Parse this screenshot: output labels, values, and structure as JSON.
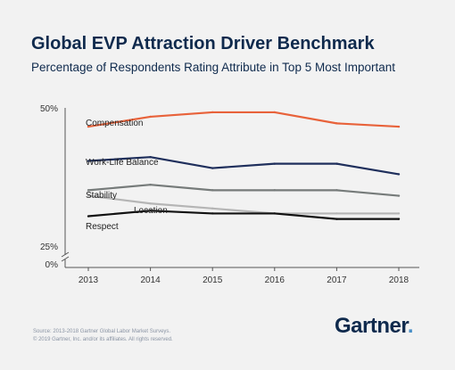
{
  "chart_data": {
    "type": "line",
    "title": "Global EVP Attraction Driver Benchmark",
    "subtitle": "Percentage of Respondents Rating Attribute in Top 5 Most Important",
    "categories": [
      "2013",
      "2014",
      "2015",
      "2016",
      "2017",
      "2018"
    ],
    "y_tick_labels": [
      "50%",
      "25%",
      "0%"
    ],
    "axis_break": true,
    "grid": false,
    "legend": "inline labels",
    "series": [
      {
        "name": "Compensation",
        "color": "#e8623a",
        "values": [
          46.6,
          48.4,
          49.2,
          49.2,
          47.2,
          46.6
        ]
      },
      {
        "name": "Work-Life Balance",
        "color": "#1f2f5c",
        "values": [
          40.4,
          41.1,
          39.1,
          39.9,
          39.9,
          38.0
        ]
      },
      {
        "name": "Stability",
        "color": "#767b7a",
        "values": [
          35.1,
          36.1,
          35.1,
          35.1,
          35.1,
          34.1
        ]
      },
      {
        "name": "Location",
        "color": "#b5b5b5",
        "values": [
          34.1,
          32.7,
          31.8,
          30.9,
          30.9,
          30.9
        ]
      },
      {
        "name": "Respect",
        "color": "#111111",
        "values": [
          30.4,
          31.4,
          30.9,
          30.9,
          29.9,
          29.9
        ]
      }
    ]
  },
  "footer": {
    "source": "Source: 2013-2018 Gartner Global Labor Market Surveys.",
    "copyright": "© 2019 Gartner, Inc. and/or its affiliates. All rights reserved."
  },
  "brand": {
    "name": "Gartner",
    "dot": "."
  }
}
